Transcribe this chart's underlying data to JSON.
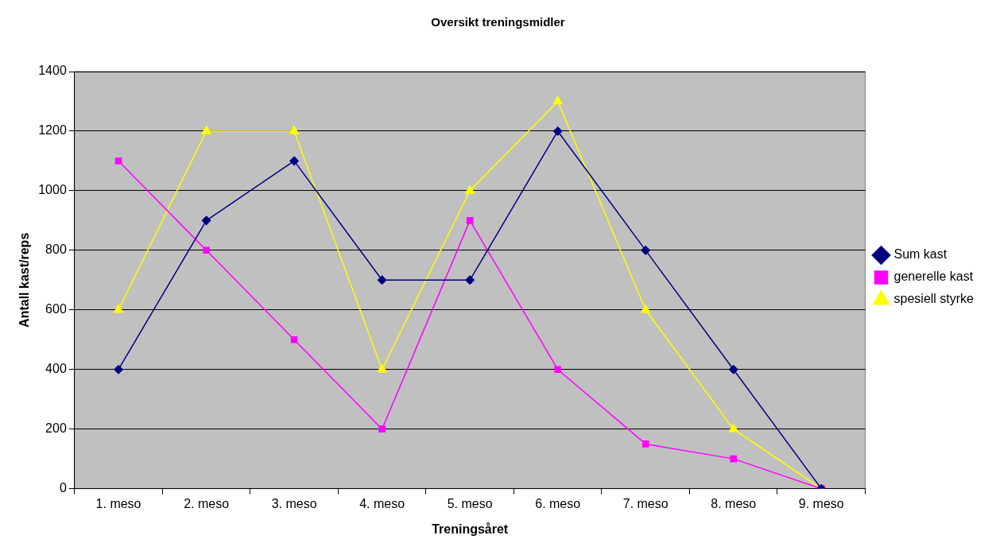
{
  "chart_data": {
    "type": "line",
    "title": "Oversikt treningsmidler",
    "xlabel": "Treningsåret",
    "ylabel": "Antall kast/reps",
    "categories": [
      "1. meso",
      "2. meso",
      "3. meso",
      "4. meso",
      "5. meso",
      "6. meso",
      "7. meso",
      "8. meso",
      "9. meso"
    ],
    "series": [
      {
        "name": "Sum kast",
        "color": "#000080",
        "marker": "diamond",
        "values": [
          400,
          900,
          1100,
          700,
          700,
          1200,
          800,
          400,
          0
        ]
      },
      {
        "name": "generelle kast",
        "color": "#ff00ff",
        "marker": "square",
        "values": [
          1100,
          800,
          500,
          200,
          900,
          400,
          150,
          100,
          0
        ]
      },
      {
        "name": "spesiell styrke",
        "color": "#ffff00",
        "marker": "triangle",
        "values": [
          600,
          1200,
          1200,
          400,
          1000,
          1300,
          600,
          200,
          0
        ]
      }
    ],
    "ylim": [
      0,
      1400
    ],
    "yticks": [
      0,
      200,
      400,
      600,
      800,
      1000,
      1200,
      1400
    ],
    "grid": "y",
    "legend": "right"
  }
}
